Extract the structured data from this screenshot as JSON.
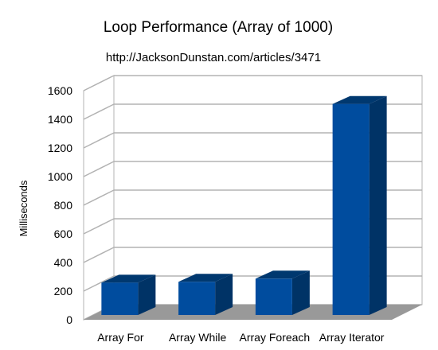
{
  "chart_data": {
    "type": "bar",
    "title": "Loop Performance (Array of 1000)",
    "subtitle": "http://JacksonDunstan.com/articles/3471",
    "xlabel": "",
    "ylabel": "Milliseconds",
    "categories": [
      "Array For",
      "Array While",
      "Array Foreach",
      "Array Iterator"
    ],
    "values": [
      237,
      243,
      265,
      1485
    ],
    "ylim": [
      0,
      1600
    ],
    "yticks": [
      "0",
      "200",
      "400",
      "600",
      "800",
      "1000",
      "1200",
      "1400",
      "1600"
    ],
    "grid": true,
    "legend": "none",
    "style": "3d",
    "colors": {
      "bar_front": "#004c9e",
      "bar_side": "#003366",
      "bar_top": "#00386f",
      "floor": "#999999",
      "grid": "#b3b3b3",
      "wall": "#ffffff"
    }
  }
}
